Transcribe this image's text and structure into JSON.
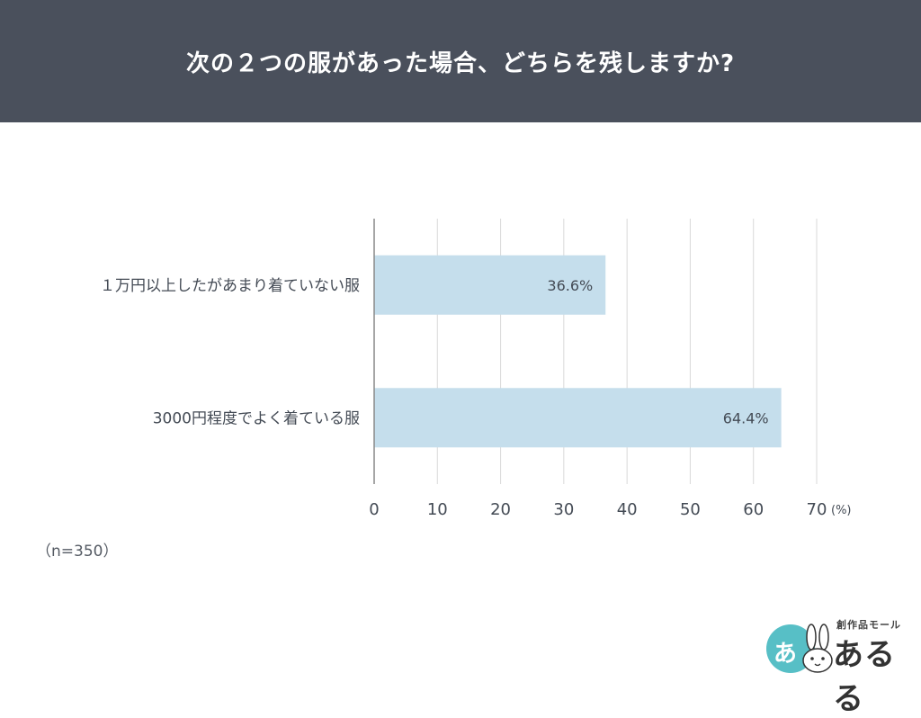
{
  "header": {
    "title": "次の２つの服があった場合、どちらを残しますか?"
  },
  "note": {
    "sample_size": "（n=350）"
  },
  "logo": {
    "circle_text": "あ",
    "sub_text": "創作品モール",
    "main_text": "あるる"
  },
  "colors": {
    "header_bg": "#4a505c",
    "bar": "#c5deec",
    "grid": "#d9d9d9",
    "axis": "#888888",
    "text": "#444b55",
    "logo_accent": "#57bfc6"
  },
  "chart_data": {
    "type": "bar",
    "orientation": "horizontal",
    "categories": [
      "１万円以上したがあまり着ていない服",
      "3000円程度でよく着ている服"
    ],
    "values": [
      36.6,
      64.4
    ],
    "data_labels": [
      "36.6%",
      "64.4%"
    ],
    "xlim": [
      0,
      70
    ],
    "x_ticks": [
      0,
      10,
      20,
      30,
      40,
      50,
      60,
      70
    ],
    "x_unit": "(%)",
    "grid": true,
    "legend": "none"
  }
}
